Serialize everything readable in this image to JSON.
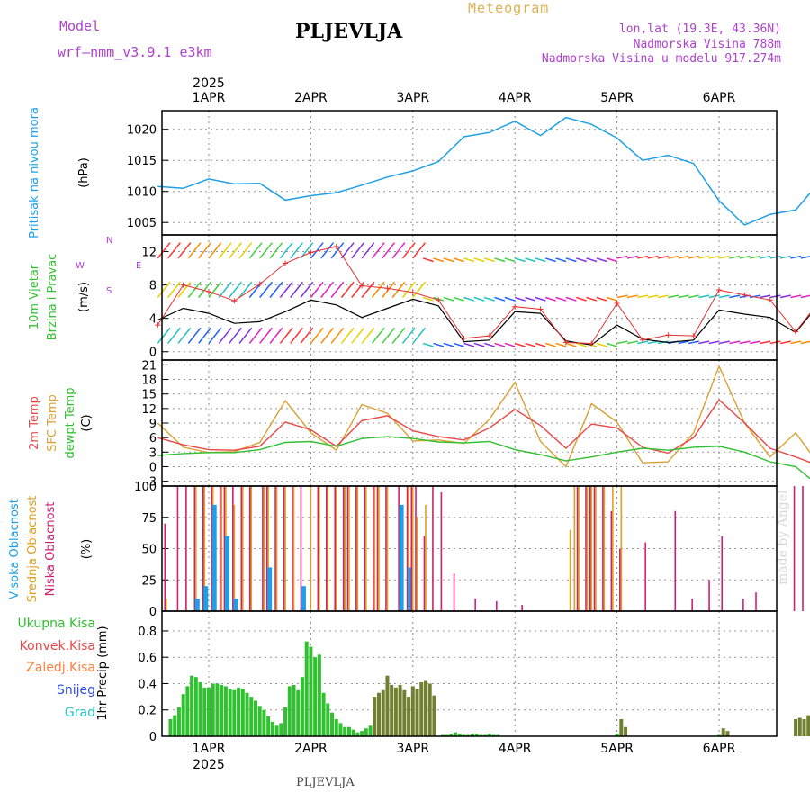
{
  "header": {
    "model_label": "Model",
    "model_name": "wrf—nmm_v3.9.1  e3km",
    "city": "PLJEVLJA",
    "title": "Meteogram",
    "lonlat": "lon,lat (19.3E, 43.36N)",
    "altitude": "Nadmorska Visina 788m",
    "altitude_model": "Nadmorska Visina u modelu 917.274m"
  },
  "footer": {
    "city": "PLJEVLJA",
    "credit": "made by Angel"
  },
  "colors": {
    "pressure": "#1ea0e6",
    "wind_speed": "#000000",
    "wind_gust": "#e83030",
    "temp2m": "#e84848",
    "sfc_temp": "#dba030",
    "dewpt": "#30c030",
    "high_cloud": "#1ea0e6",
    "mid_cloud": "#e0a020",
    "low_cloud": "#d02070",
    "precip": "#30c030"
  },
  "chart_data": [
    {
      "type": "line",
      "panel": "pressure",
      "title": "Pritisak na nivou mora",
      "ylabel": "(hPa)",
      "ylim": [
        1003,
        1023
      ],
      "yticks": [
        1005,
        1010,
        1015,
        1020
      ],
      "x_dates": [
        "1APR",
        "2APR",
        "3APR",
        "4APR",
        "5APR",
        "6APR"
      ],
      "year": "2025",
      "x_hours": [
        -12,
        -6,
        0,
        6,
        12,
        18,
        24,
        30,
        36,
        42,
        48,
        54,
        60,
        66,
        72,
        78,
        84,
        90,
        96,
        102,
        108,
        114,
        120,
        126,
        132,
        138,
        142
      ],
      "series": [
        {
          "name": "MSLP",
          "values": [
            1010.8,
            1010.5,
            1012.0,
            1011.2,
            1011.3,
            1008.6,
            1009.3,
            1009.8,
            1011.0,
            1012.3,
            1013.3,
            1014.8,
            1018.8,
            1019.5,
            1021.3,
            1019.0,
            1021.9,
            1020.8,
            1018.6,
            1015.0,
            1015.8,
            1014.5,
            1008.5,
            1004.6,
            1006.3,
            1007.0,
            1010.2
          ]
        }
      ]
    },
    {
      "type": "line",
      "panel": "wind",
      "title": "10m Vjetar",
      "subtitle": "Brzina i Pravac",
      "ylabel": "(m/s)",
      "ylim": [
        -1,
        14
      ],
      "yticks": [
        0,
        4,
        8,
        12
      ],
      "compass": {
        "n": "N",
        "s": "S",
        "e": "E",
        "w": "W"
      },
      "x_hours": [
        -12,
        -6,
        0,
        6,
        12,
        18,
        24,
        30,
        36,
        42,
        48,
        54,
        60,
        66,
        72,
        78,
        84,
        90,
        96,
        102,
        108,
        114,
        120,
        126,
        132,
        138,
        142
      ],
      "series": [
        {
          "name": "speed",
          "values": [
            3.8,
            5.2,
            4.6,
            3.4,
            3.6,
            4.8,
            6.2,
            5.6,
            4.1,
            5.2,
            6.3,
            5.5,
            1.2,
            1.4,
            4.8,
            4.6,
            1.3,
            0.8,
            3.2,
            1.5,
            1.1,
            1.4,
            5.0,
            4.5,
            4.1,
            2.3,
            4.8
          ]
        },
        {
          "name": "gust",
          "values": [
            3.2,
            8.0,
            7.2,
            6.1,
            8.1,
            10.6,
            11.9,
            12.6,
            7.9,
            7.6,
            7.1,
            6.2,
            1.6,
            1.9,
            5.4,
            5.1,
            1.1,
            1.0,
            5.8,
            1.4,
            2.0,
            1.9,
            7.4,
            6.8,
            6.2,
            2.4,
            5.0
          ]
        }
      ]
    },
    {
      "type": "line",
      "panel": "temperature",
      "title": "2m Temp",
      "legend": [
        "2m Temp",
        "SFC Temp",
        "dewpt Temp"
      ],
      "ylabel": "(C)",
      "ylim": [
        -4,
        22
      ],
      "yticks": [
        -3,
        0,
        3,
        6,
        9,
        12,
        15,
        18,
        21
      ],
      "x_hours": [
        -12,
        -6,
        0,
        6,
        12,
        18,
        24,
        30,
        36,
        42,
        48,
        54,
        60,
        66,
        72,
        78,
        84,
        90,
        96,
        102,
        108,
        114,
        120,
        126,
        132,
        138,
        142
      ],
      "series": [
        {
          "name": "2m Temp",
          "values": [
            6.0,
            4.5,
            3.5,
            3.4,
            4.2,
            9.2,
            7.6,
            4.2,
            9.5,
            10.5,
            7.4,
            6.2,
            5.5,
            8.0,
            11.8,
            8.5,
            3.8,
            8.8,
            8.0,
            4.0,
            2.8,
            6.0,
            13.8,
            9.0,
            3.8,
            2.0,
            0.7
          ]
        },
        {
          "name": "SFC Temp",
          "values": [
            9.0,
            4.0,
            2.9,
            3.1,
            5.0,
            13.6,
            7.0,
            3.4,
            12.8,
            11.0,
            5.3,
            5.5,
            4.8,
            9.8,
            17.4,
            5.2,
            0.0,
            13.0,
            9.2,
            0.8,
            1.0,
            7.0,
            20.7,
            9.0,
            2.0,
            7.0,
            2.2
          ]
        },
        {
          "name": "dewpt Temp",
          "values": [
            2.3,
            2.7,
            2.9,
            2.9,
            3.5,
            5.0,
            5.2,
            4.2,
            5.8,
            6.2,
            5.8,
            5.1,
            4.9,
            5.2,
            3.5,
            2.5,
            1.2,
            2.0,
            3.0,
            3.8,
            3.4,
            4.0,
            4.2,
            3.0,
            1.0,
            0.0,
            -2.9
          ]
        }
      ]
    },
    {
      "type": "bar",
      "panel": "cloud",
      "legend": [
        "Visoka Oblacnost",
        "Srednja Oblacnost",
        "Niska Oblacnost"
      ],
      "ylabel": "(%)",
      "ylim": [
        0,
        100
      ],
      "yticks": [
        0,
        25,
        50,
        75,
        100
      ],
      "x_hours": [
        -10,
        -7,
        -5,
        -3,
        -1,
        1,
        3,
        4,
        6,
        8,
        10,
        13,
        14,
        16,
        18,
        20,
        22,
        24,
        26,
        28,
        30,
        32,
        33,
        35,
        37,
        39,
        40,
        42,
        45,
        47,
        48,
        49,
        51,
        53,
        55,
        58,
        63,
        68,
        74,
        80,
        85,
        86,
        87,
        89,
        90,
        91,
        93,
        95,
        97,
        99,
        101,
        103,
        110,
        114,
        118,
        121,
        126,
        129,
        136,
        138,
        140,
        142
      ],
      "series": [
        {
          "name": "Visoka Oblacnost",
          "values": [
            0,
            0,
            0,
            10,
            20,
            85,
            0,
            60,
            10,
            0,
            0,
            0,
            35,
            0,
            0,
            0,
            20,
            0,
            0,
            0,
            0,
            0,
            0,
            0,
            0,
            0,
            0,
            0,
            85,
            35,
            0,
            0,
            0,
            0,
            0,
            0,
            0,
            0,
            0,
            0,
            0,
            0,
            0,
            0,
            0,
            0,
            0,
            0,
            0,
            0,
            0,
            0,
            0,
            0,
            0,
            0,
            0,
            0,
            0,
            0,
            0,
            30
          ]
        },
        {
          "name": "Srednja Oblacnost",
          "values": [
            10,
            0,
            0,
            100,
            100,
            100,
            100,
            100,
            85,
            100,
            100,
            100,
            100,
            100,
            100,
            100,
            0,
            100,
            100,
            100,
            100,
            100,
            100,
            100,
            100,
            100,
            100,
            100,
            85,
            100,
            100,
            75,
            85,
            0,
            0,
            0,
            0,
            0,
            0,
            0,
            65,
            100,
            100,
            100,
            100,
            100,
            100,
            100,
            100,
            0,
            0,
            0,
            0,
            0,
            0,
            0,
            0,
            0,
            0,
            0,
            0,
            100
          ]
        },
        {
          "name": "Niska Oblacnost",
          "values": [
            70,
            100,
            100,
            100,
            100,
            100,
            100,
            100,
            100,
            100,
            100,
            100,
            100,
            100,
            100,
            100,
            100,
            0,
            100,
            100,
            100,
            100,
            100,
            100,
            100,
            100,
            100,
            100,
            100,
            100,
            100,
            100,
            60,
            100,
            95,
            30,
            10,
            8,
            5,
            0,
            0,
            0,
            100,
            100,
            100,
            100,
            100,
            80,
            50,
            0,
            0,
            55,
            80,
            10,
            25,
            60,
            10,
            15,
            0,
            100,
            100,
            100
          ]
        }
      ]
    },
    {
      "type": "bar",
      "panel": "precipitation",
      "legend": [
        "Ukupna Kisa",
        "Konvek.Kisa",
        "Zaledj.Kisa",
        "Snijeg",
        "Grad"
      ],
      "ylabel": "1hr Precip (mm)",
      "ylim": [
        0,
        0.95
      ],
      "yticks": [
        0,
        0.2,
        0.4,
        0.6,
        0.8
      ],
      "x_hours": [
        -9,
        -8,
        -7,
        -6,
        -5,
        -4,
        -3,
        -2,
        -1,
        0,
        1,
        2,
        3,
        4,
        5,
        6,
        7,
        8,
        9,
        10,
        11,
        12,
        13,
        14,
        15,
        16,
        17,
        18,
        19,
        20,
        21,
        22,
        23,
        24,
        25,
        26,
        27,
        28,
        29,
        30,
        31,
        32,
        33,
        34,
        35,
        36,
        37,
        38,
        39,
        40,
        41,
        42,
        43,
        44,
        45,
        46,
        47,
        48,
        49,
        50,
        51,
        52,
        53,
        54,
        55,
        56,
        57,
        58,
        59,
        60,
        61,
        62,
        63,
        64,
        65,
        66,
        67,
        68,
        96,
        97,
        98,
        120,
        121,
        122,
        138,
        139,
        140,
        141
      ],
      "series": [
        {
          "name": "Ukupna Kisa",
          "values": [
            0.13,
            0.16,
            0.22,
            0.32,
            0.38,
            0.46,
            0.45,
            0.41,
            0.37,
            0.37,
            0.4,
            0.4,
            0.39,
            0.38,
            0.36,
            0.35,
            0.37,
            0.36,
            0.33,
            0.3,
            0.27,
            0.23,
            0.2,
            0.15,
            0.11,
            0.08,
            0.1,
            0.22,
            0.38,
            0.39,
            0.35,
            0.45,
            0.72,
            0.68,
            0.6,
            0.62,
            0.33,
            0.25,
            0.18,
            0.13,
            0.1,
            0.07,
            0.07,
            0.05,
            0.03,
            0.04,
            0.06,
            0.08,
            0.3,
            0.33,
            0.35,
            0.46,
            0.39,
            0.37,
            0.39,
            0.35,
            0.3,
            0.38,
            0.36,
            0.41,
            0.42,
            0.4,
            0.31,
            0.0,
            0.01,
            0.01,
            0.02,
            0.03,
            0.02,
            0.01,
            0.01,
            0.02,
            0.02,
            0.01,
            0.01,
            0.02,
            0.01,
            0.01,
            0.02,
            0.13,
            0.07,
            0.01,
            0.06,
            0.04,
            0.13,
            0.14,
            0.13,
            0.16
          ]
        },
        {
          "name": "Konvek.Kisa",
          "values": [
            0,
            0,
            0,
            0,
            0,
            0,
            0,
            0,
            0,
            0,
            0,
            0,
            0,
            0,
            0,
            0,
            0,
            0,
            0,
            0,
            0,
            0,
            0,
            0,
            0,
            0,
            0,
            0,
            0,
            0,
            0,
            0,
            0,
            0,
            0,
            0,
            0,
            0,
            0,
            0,
            0,
            0,
            0,
            0,
            0,
            0,
            0,
            0,
            0.28,
            0.3,
            0.33,
            0.44,
            0.37,
            0.35,
            0.37,
            0.33,
            0.28,
            0.36,
            0.34,
            0.4,
            0.4,
            0.38,
            0.3,
            0,
            0,
            0,
            0,
            0,
            0,
            0,
            0,
            0,
            0,
            0,
            0,
            0,
            0,
            0,
            0,
            0.12,
            0.06,
            0,
            0.05,
            0.03,
            0.12,
            0.13,
            0.12,
            0.15
          ]
        }
      ]
    }
  ]
}
